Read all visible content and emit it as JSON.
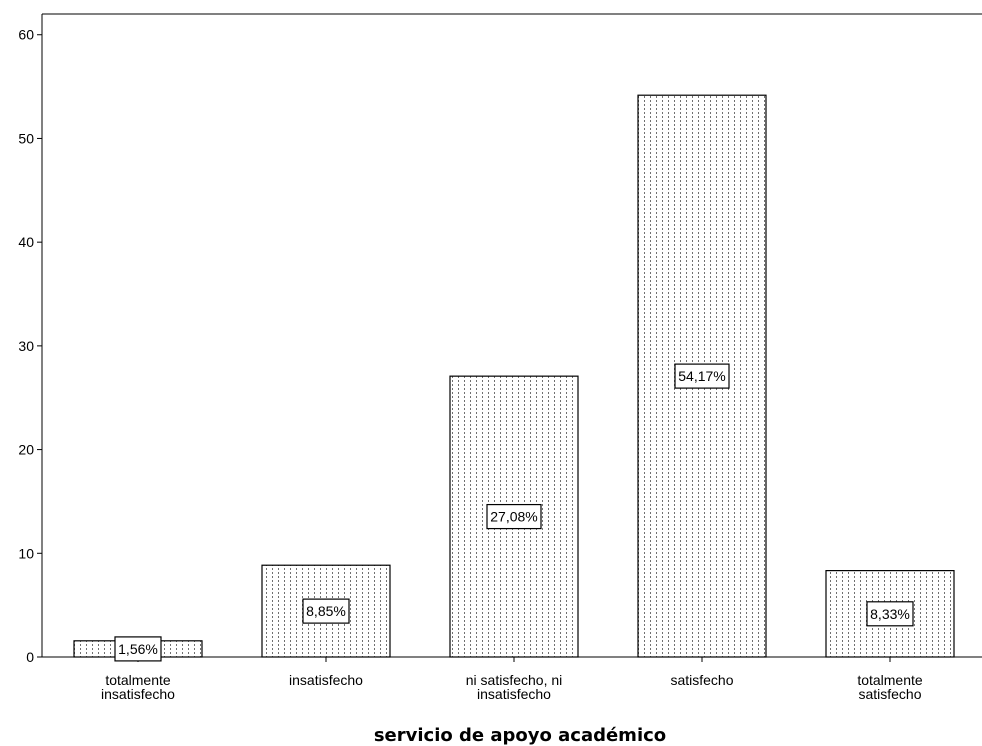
{
  "chart_data": {
    "type": "bar",
    "title": "",
    "xlabel": "servicio de apoyo académico",
    "ylabel": "",
    "categories": [
      [
        "totalmente",
        "insatisfecho"
      ],
      [
        "insatisfecho"
      ],
      [
        "ni satisfecho, ni",
        "insatisfecho"
      ],
      [
        "satisfecho"
      ],
      [
        "totalmente",
        "satisfecho"
      ]
    ],
    "values": [
      1.56,
      8.85,
      27.08,
      54.17,
      8.33
    ],
    "data_labels": [
      "1,56%",
      "8,85%",
      "27,08%",
      "54,17%",
      "8,33%"
    ],
    "ylim": [
      0,
      62
    ],
    "yticks": [
      0,
      10,
      20,
      30,
      40,
      50,
      60
    ],
    "grid": false,
    "legend": "none",
    "bar_pattern": "vertical-dotted",
    "colors": {
      "bar_fill": "#ffffff",
      "bar_pattern": "#707070",
      "stroke": "#000000"
    }
  }
}
